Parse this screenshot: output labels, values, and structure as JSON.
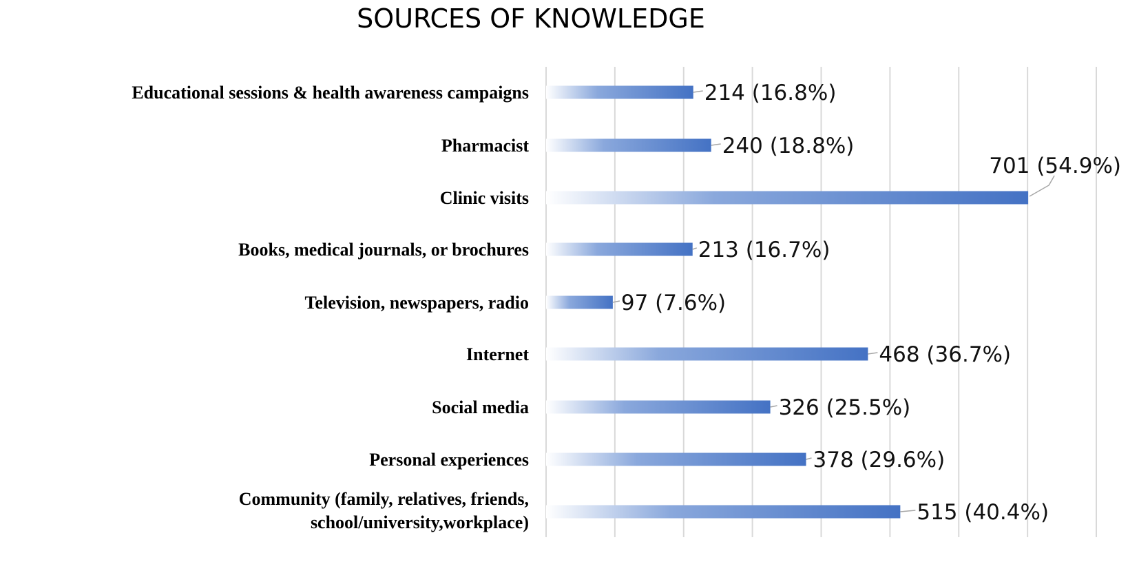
{
  "chart_data": {
    "type": "bar",
    "orientation": "horizontal",
    "title": "SOURCES OF KNOWLEDGE",
    "xlabel": "",
    "ylabel": "",
    "categories": [
      [
        "Educational sessions & health awareness campaigns"
      ],
      [
        "Pharmacist"
      ],
      [
        "Clinic visits"
      ],
      [
        "Books, medical journals, or brochures"
      ],
      [
        "Television, newspapers, radio"
      ],
      [
        "Internet"
      ],
      [
        "Social media"
      ],
      [
        "Personal experiences"
      ],
      [
        "Community (family, relatives, friends,",
        "school/university,workplace)"
      ]
    ],
    "values": [
      214,
      240,
      701,
      213,
      97,
      468,
      326,
      378,
      515
    ],
    "data_labels": [
      "214 (16.8%)",
      "240 (18.8%)",
      "701 (54.9%)",
      "213 (16.7%)",
      "97 (7.6%)",
      "468 (36.7%)",
      "326 (25.5%)",
      "378 (29.6%)",
      "515 (40.4%)"
    ],
    "xlim": [
      0,
      800
    ],
    "grid": true,
    "legend": "none",
    "colors": {
      "bar": "#4472c4",
      "bar_fade": "#ffffff",
      "grid": "#d9d9d9",
      "leader": "#a6a6a6"
    }
  }
}
